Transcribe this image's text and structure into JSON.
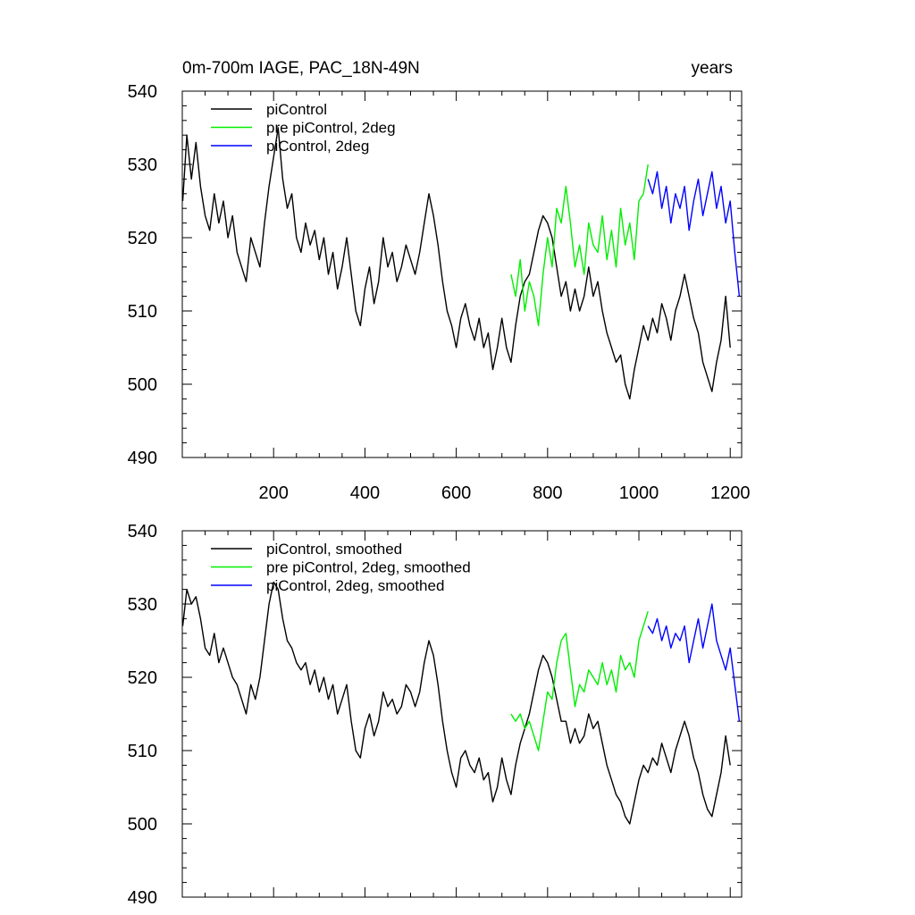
{
  "chart_data": [
    {
      "type": "line",
      "title_left": "0m-700m IAGE, PAC_18N-49N",
      "title_right": "years",
      "xlabel": "",
      "ylabel": "",
      "xlim": [
        0,
        1225
      ],
      "ylim": [
        490,
        540
      ],
      "xticks": [
        200,
        400,
        600,
        800,
        1000,
        1200
      ],
      "xtick_labels": [
        "200",
        "400",
        "600",
        "800",
        "1000",
        "1200"
      ],
      "yticks": [
        490,
        500,
        510,
        520,
        530,
        540
      ],
      "ytick_labels": [
        "490",
        "500",
        "510",
        "520",
        "530",
        "540"
      ],
      "legend_position": "top-left",
      "series": [
        {
          "name": "piControl",
          "color": "#000000",
          "x": [
            1,
            10,
            20,
            30,
            40,
            50,
            60,
            70,
            80,
            90,
            100,
            110,
            120,
            130,
            140,
            150,
            160,
            170,
            180,
            190,
            200,
            210,
            220,
            230,
            240,
            250,
            260,
            270,
            280,
            290,
            300,
            310,
            320,
            330,
            340,
            350,
            360,
            370,
            380,
            390,
            400,
            410,
            420,
            430,
            440,
            450,
            460,
            470,
            480,
            490,
            500,
            510,
            520,
            530,
            540,
            550,
            560,
            570,
            580,
            590,
            600,
            610,
            620,
            630,
            640,
            650,
            660,
            670,
            680,
            690,
            700,
            710,
            720,
            730,
            740,
            750,
            760,
            770,
            780,
            790,
            800,
            810,
            820,
            830,
            840,
            850,
            860,
            870,
            880,
            890,
            900,
            910,
            920,
            930,
            940,
            950,
            960,
            970,
            980,
            990,
            1000,
            1010,
            1020,
            1030,
            1040,
            1050,
            1060,
            1070,
            1080,
            1090,
            1100,
            1110,
            1120,
            1130,
            1140,
            1150,
            1160,
            1170,
            1180,
            1190,
            1200
          ],
          "values": [
            525,
            534,
            528,
            533,
            527,
            523,
            521,
            526,
            522,
            525,
            520,
            523,
            518,
            516,
            514,
            520,
            518,
            516,
            522,
            527,
            531,
            535,
            528,
            524,
            526,
            520,
            518,
            522,
            519,
            521,
            517,
            520,
            515,
            518,
            513,
            516,
            520,
            515,
            510,
            508,
            513,
            516,
            511,
            514,
            520,
            516,
            518,
            514,
            516,
            519,
            517,
            515,
            518,
            522,
            526,
            523,
            519,
            514,
            510,
            508,
            505,
            509,
            511,
            508,
            506,
            509,
            505,
            507,
            502,
            505,
            509,
            505,
            503,
            508,
            512,
            514,
            515,
            518,
            521,
            523,
            522,
            520,
            516,
            512,
            514,
            510,
            513,
            510,
            512,
            516,
            512,
            514,
            510,
            507,
            505,
            503,
            504,
            500,
            498,
            502,
            505,
            508,
            506,
            509,
            507,
            511,
            509,
            506,
            510,
            512,
            515,
            512,
            509,
            507,
            503,
            501,
            499,
            503,
            506,
            512,
            505
          ]
        },
        {
          "name": "pre piControl, 2deg",
          "color": "#00ee00",
          "x": [
            720,
            730,
            740,
            750,
            760,
            770,
            780,
            790,
            800,
            810,
            820,
            830,
            840,
            850,
            860,
            870,
            880,
            890,
            900,
            910,
            920,
            930,
            940,
            950,
            960,
            970,
            980,
            990,
            1000,
            1010,
            1020
          ],
          "values": [
            515,
            512,
            517,
            510,
            514,
            512,
            508,
            515,
            520,
            516,
            524,
            522,
            527,
            522,
            516,
            519,
            515,
            522,
            519,
            518,
            523,
            517,
            521,
            516,
            524,
            519,
            522,
            517,
            525,
            526,
            530
          ]
        },
        {
          "name": "piControl, 2deg",
          "color": "#0000ff",
          "x": [
            1020,
            1030,
            1040,
            1050,
            1060,
            1070,
            1080,
            1090,
            1100,
            1110,
            1120,
            1130,
            1140,
            1150,
            1160,
            1170,
            1180,
            1190,
            1200,
            1210,
            1220
          ],
          "values": [
            528,
            526,
            529,
            524,
            527,
            522,
            526,
            524,
            527,
            521,
            525,
            528,
            523,
            526,
            529,
            524,
            527,
            522,
            525,
            518,
            512
          ]
        }
      ]
    },
    {
      "type": "line",
      "title_left": "",
      "title_right": "",
      "xlabel": "",
      "ylabel": "",
      "xlim": [
        0,
        1225
      ],
      "ylim": [
        490,
        540
      ],
      "xticks": [
        200,
        400,
        600,
        800,
        1000,
        1200
      ],
      "xtick_labels": [],
      "yticks": [
        490,
        500,
        510,
        520,
        530,
        540
      ],
      "ytick_labels": [
        "490",
        "500",
        "510",
        "520",
        "530",
        "540"
      ],
      "legend_position": "top-left",
      "series": [
        {
          "name": "piControl, smoothed",
          "color": "#000000",
          "x": [
            1,
            10,
            20,
            30,
            40,
            50,
            60,
            70,
            80,
            90,
            100,
            110,
            120,
            130,
            140,
            150,
            160,
            170,
            180,
            190,
            200,
            210,
            220,
            230,
            240,
            250,
            260,
            270,
            280,
            290,
            300,
            310,
            320,
            330,
            340,
            350,
            360,
            370,
            380,
            390,
            400,
            410,
            420,
            430,
            440,
            450,
            460,
            470,
            480,
            490,
            500,
            510,
            520,
            530,
            540,
            550,
            560,
            570,
            580,
            590,
            600,
            610,
            620,
            630,
            640,
            650,
            660,
            670,
            680,
            690,
            700,
            710,
            720,
            730,
            740,
            750,
            760,
            770,
            780,
            790,
            800,
            810,
            820,
            830,
            840,
            850,
            860,
            870,
            880,
            890,
            900,
            910,
            920,
            930,
            940,
            950,
            960,
            970,
            980,
            990,
            1000,
            1010,
            1020,
            1030,
            1040,
            1050,
            1060,
            1070,
            1080,
            1090,
            1100,
            1110,
            1120,
            1130,
            1140,
            1150,
            1160,
            1170,
            1180,
            1190,
            1200
          ],
          "values": [
            527,
            532,
            530,
            531,
            528,
            524,
            523,
            526,
            522,
            524,
            522,
            520,
            519,
            517,
            515,
            519,
            517,
            520,
            525,
            530,
            533,
            532,
            528,
            525,
            524,
            522,
            521,
            522,
            519,
            521,
            518,
            520,
            517,
            519,
            515,
            517,
            519,
            514,
            510,
            509,
            513,
            515,
            512,
            514,
            518,
            516,
            517,
            515,
            516,
            519,
            518,
            516,
            518,
            522,
            525,
            523,
            519,
            514,
            510,
            507,
            505,
            509,
            510,
            508,
            507,
            509,
            506,
            507,
            503,
            505,
            509,
            506,
            504,
            508,
            511,
            513,
            515,
            518,
            521,
            523,
            522,
            520,
            517,
            514,
            514,
            511,
            513,
            511,
            512,
            515,
            513,
            514,
            511,
            508,
            506,
            504,
            503,
            501,
            500,
            503,
            506,
            508,
            507,
            509,
            508,
            511,
            509,
            507,
            510,
            512,
            514,
            512,
            509,
            507,
            504,
            502,
            501,
            504,
            507,
            512,
            508
          ]
        },
        {
          "name": "pre piControl, 2deg, smoothed",
          "color": "#00ee00",
          "x": [
            720,
            730,
            740,
            750,
            760,
            770,
            780,
            790,
            800,
            810,
            820,
            830,
            840,
            850,
            860,
            870,
            880,
            890,
            900,
            910,
            920,
            930,
            940,
            950,
            960,
            970,
            980,
            990,
            1000,
            1010,
            1020
          ],
          "values": [
            515,
            514,
            515,
            513,
            514,
            512,
            510,
            514,
            518,
            517,
            522,
            525,
            526,
            521,
            516,
            519,
            518,
            521,
            520,
            519,
            522,
            519,
            521,
            518,
            523,
            521,
            522,
            520,
            525,
            527,
            529
          ]
        },
        {
          "name": "piControl, 2deg, smoothed",
          "color": "#0000ff",
          "x": [
            1020,
            1030,
            1040,
            1050,
            1060,
            1070,
            1080,
            1090,
            1100,
            1110,
            1120,
            1130,
            1140,
            1150,
            1160,
            1170,
            1180,
            1190,
            1200,
            1210,
            1220
          ],
          "values": [
            527,
            526,
            528,
            525,
            527,
            524,
            526,
            525,
            527,
            522,
            525,
            528,
            524,
            527,
            530,
            525,
            523,
            521,
            524,
            519,
            514
          ]
        }
      ]
    }
  ]
}
